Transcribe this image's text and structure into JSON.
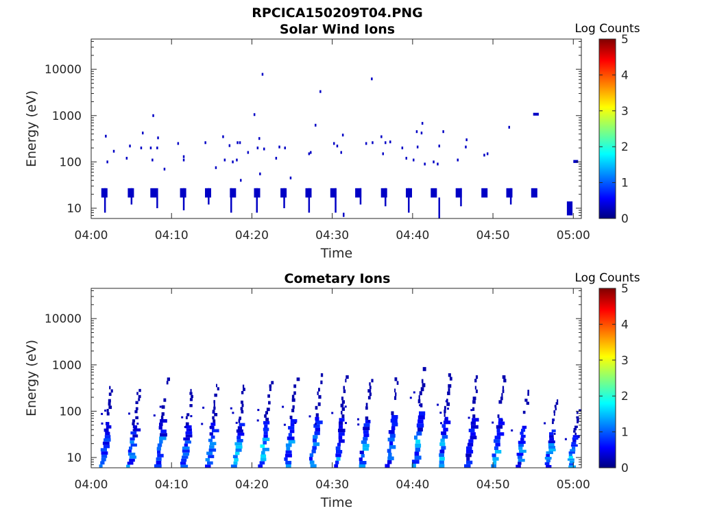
{
  "figure_title": "RPCICA150209T04.PNG",
  "chart_data": [
    {
      "type": "heatmap",
      "title": "Solar Wind Ions",
      "xlabel": "Time",
      "ylabel": "Energy (eV)",
      "x_ticks": [
        "04:00",
        "04:10",
        "04:20",
        "04:30",
        "04:40",
        "04:50",
        "05:00"
      ],
      "xlim_minutes": [
        0,
        61
      ],
      "y_scale": "log",
      "ylim": [
        6,
        45000
      ],
      "y_ticks": [
        10,
        100,
        1000,
        10000
      ],
      "y_tick_labels": [
        "10",
        "100",
        "1000",
        "10000"
      ],
      "colorbar": {
        "title": "Log Counts",
        "range": [
          0,
          5
        ],
        "ticks": [
          "0",
          "1",
          "2",
          "3",
          "4",
          "5"
        ]
      },
      "colormap": [
        "#00007f",
        "#0000ff",
        "#00ffff",
        "#ffff00",
        "#ff0000",
        "#7f0000"
      ],
      "bands": [
        {
          "times_min": [
            1.6,
            4.9,
            7.7,
            11.4,
            14.5,
            17.6,
            20.6,
            23.9,
            27.0,
            30.1,
            33.2,
            36.4,
            39.5,
            42.6,
            45.7,
            48.9,
            52.0,
            55.1
          ],
          "e_low": 17,
          "e_high": 27,
          "level": 0.3
        }
      ],
      "streaks": [
        {
          "t": 1.7,
          "e_low": 8,
          "e_high": 27
        },
        {
          "t": 5.0,
          "e_low": 12,
          "e_high": 27
        },
        {
          "t": 8.2,
          "e_low": 10,
          "e_high": 27
        },
        {
          "t": 11.5,
          "e_low": 9,
          "e_high": 27
        },
        {
          "t": 14.6,
          "e_low": 12,
          "e_high": 27
        },
        {
          "t": 17.4,
          "e_low": 8,
          "e_high": 27
        },
        {
          "t": 20.6,
          "e_low": 8,
          "e_high": 27
        },
        {
          "t": 24.0,
          "e_low": 10,
          "e_high": 27
        },
        {
          "t": 27.1,
          "e_low": 8,
          "e_high": 27
        },
        {
          "t": 30.4,
          "e_low": 8,
          "e_high": 27
        },
        {
          "t": 31.4,
          "e_low": 6.5,
          "e_high": 8
        },
        {
          "t": 33.5,
          "e_low": 12,
          "e_high": 27
        },
        {
          "t": 36.6,
          "e_low": 11,
          "e_high": 27
        },
        {
          "t": 39.5,
          "e_low": 8,
          "e_high": 27
        },
        {
          "t": 43.3,
          "e_low": 6,
          "e_high": 17
        },
        {
          "t": 46.0,
          "e_low": 11,
          "e_high": 27
        },
        {
          "t": 52.2,
          "e_low": 12,
          "e_high": 27
        }
      ],
      "blocks": [
        {
          "t0": 55.0,
          "t1": 55.7,
          "e_low": 1000,
          "e_high": 1150,
          "level": 0.3
        },
        {
          "t0": 59.2,
          "t1": 59.9,
          "e_low": 7,
          "e_high": 14,
          "level": 0.3
        },
        {
          "t0": 60.0,
          "t1": 60.6,
          "e_low": 95,
          "e_high": 110,
          "level": 0.3
        }
      ],
      "scatter": [
        {
          "t": 1.8,
          "e": 360
        },
        {
          "t": 2.0,
          "e": 100
        },
        {
          "t": 2.8,
          "e": 170
        },
        {
          "t": 4.4,
          "e": 120
        },
        {
          "t": 4.8,
          "e": 220
        },
        {
          "t": 6.2,
          "e": 200
        },
        {
          "t": 6.4,
          "e": 420
        },
        {
          "t": 7.4,
          "e": 200
        },
        {
          "t": 7.6,
          "e": 110
        },
        {
          "t": 7.7,
          "e": 1000
        },
        {
          "t": 8.2,
          "e": 200
        },
        {
          "t": 8.3,
          "e": 330
        },
        {
          "t": 9.1,
          "e": 70
        },
        {
          "t": 10.8,
          "e": 250
        },
        {
          "t": 11.5,
          "e": 130
        },
        {
          "t": 11.5,
          "e": 110
        },
        {
          "t": 14.2,
          "e": 260
        },
        {
          "t": 15.5,
          "e": 75
        },
        {
          "t": 16.4,
          "e": 350
        },
        {
          "t": 16.6,
          "e": 110
        },
        {
          "t": 17.2,
          "e": 225
        },
        {
          "t": 17.6,
          "e": 100
        },
        {
          "t": 18.1,
          "e": 110
        },
        {
          "t": 18.2,
          "e": 260
        },
        {
          "t": 18.5,
          "e": 260
        },
        {
          "t": 18.6,
          "e": 40
        },
        {
          "t": 19.5,
          "e": 160
        },
        {
          "t": 20.3,
          "e": 1050
        },
        {
          "t": 20.7,
          "e": 200
        },
        {
          "t": 20.9,
          "e": 320
        },
        {
          "t": 21.0,
          "e": 55
        },
        {
          "t": 21.3,
          "e": 7800
        },
        {
          "t": 21.5,
          "e": 190
        },
        {
          "t": 23.0,
          "e": 120
        },
        {
          "t": 23.4,
          "e": 210
        },
        {
          "t": 24.1,
          "e": 200
        },
        {
          "t": 24.8,
          "e": 45
        },
        {
          "t": 27.1,
          "e": 150
        },
        {
          "t": 27.3,
          "e": 160
        },
        {
          "t": 27.9,
          "e": 620
        },
        {
          "t": 28.5,
          "e": 3300
        },
        {
          "t": 30.2,
          "e": 250
        },
        {
          "t": 30.6,
          "e": 220
        },
        {
          "t": 31.1,
          "e": 160
        },
        {
          "t": 31.3,
          "e": 380
        },
        {
          "t": 34.2,
          "e": 250
        },
        {
          "t": 34.9,
          "e": 6200
        },
        {
          "t": 35.0,
          "e": 260
        },
        {
          "t": 36.1,
          "e": 350
        },
        {
          "t": 36.3,
          "e": 150
        },
        {
          "t": 36.6,
          "e": 260
        },
        {
          "t": 37.2,
          "e": 270
        },
        {
          "t": 38.7,
          "e": 200
        },
        {
          "t": 39.2,
          "e": 120
        },
        {
          "t": 40.1,
          "e": 110
        },
        {
          "t": 40.5,
          "e": 450
        },
        {
          "t": 40.6,
          "e": 210
        },
        {
          "t": 41.1,
          "e": 420
        },
        {
          "t": 41.2,
          "e": 680
        },
        {
          "t": 41.5,
          "e": 90
        },
        {
          "t": 42.6,
          "e": 100
        },
        {
          "t": 43.1,
          "e": 90
        },
        {
          "t": 43.3,
          "e": 220
        },
        {
          "t": 43.8,
          "e": 450
        },
        {
          "t": 45.6,
          "e": 110
        },
        {
          "t": 46.6,
          "e": 210
        },
        {
          "t": 46.7,
          "e": 300
        },
        {
          "t": 48.9,
          "e": 140
        },
        {
          "t": 49.3,
          "e": 150
        },
        {
          "t": 52.0,
          "e": 560
        }
      ],
      "scatter_level": 0.3
    },
    {
      "type": "heatmap",
      "title": "Cometary Ions",
      "xlabel": "Time",
      "ylabel": "Energy (eV)",
      "x_ticks": [
        "04:00",
        "04:10",
        "04:20",
        "04:30",
        "04:40",
        "04:50",
        "05:00"
      ],
      "xlim_minutes": [
        0,
        61
      ],
      "y_scale": "log",
      "ylim": [
        6,
        45000
      ],
      "y_ticks": [
        10,
        100,
        1000,
        10000
      ],
      "y_tick_labels": [
        "10",
        "100",
        "1000",
        "10000"
      ],
      "colorbar": {
        "title": "Log Counts",
        "range": [
          0,
          5
        ],
        "ticks": [
          "0",
          "1",
          "2",
          "3",
          "4",
          "5"
        ]
      },
      "colormap": [
        "#00007f",
        "#0000ff",
        "#00ffff",
        "#ffff00",
        "#ff0000",
        "#7f0000"
      ],
      "sweeps": [
        {
          "t": 1.4,
          "peak_e": 350,
          "level": 0.8
        },
        {
          "t": 4.8,
          "peak_e": 260,
          "level": 0.9
        },
        {
          "t": 8.3,
          "peak_e": 450,
          "level": 0.9
        },
        {
          "t": 11.4,
          "peak_e": 260,
          "level": 0.8
        },
        {
          "t": 14.6,
          "peak_e": 330,
          "level": 0.9
        },
        {
          "t": 17.9,
          "peak_e": 320,
          "level": 1.2
        },
        {
          "t": 21.2,
          "peak_e": 380,
          "level": 1.2
        },
        {
          "t": 24.4,
          "peak_e": 450,
          "level": 1.0
        },
        {
          "t": 27.5,
          "peak_e": 550,
          "level": 1.1
        },
        {
          "t": 30.6,
          "peak_e": 500,
          "level": 1.0
        },
        {
          "t": 33.7,
          "peak_e": 420,
          "level": 1.0
        },
        {
          "t": 37.0,
          "peak_e": 650,
          "level": 1.0
        },
        {
          "t": 40.3,
          "peak_e": 900,
          "level": 1.2
        },
        {
          "t": 43.5,
          "peak_e": 550,
          "level": 1.1
        },
        {
          "t": 46.9,
          "peak_e": 500,
          "level": 0.6
        },
        {
          "t": 50.2,
          "peak_e": 500,
          "level": 1.0
        },
        {
          "t": 53.2,
          "peak_e": 250,
          "level": 0.9
        },
        {
          "t": 56.8,
          "peak_e": 180,
          "level": 1.0
        },
        {
          "t": 59.6,
          "peak_e": 110,
          "level": 1.2
        }
      ]
    }
  ]
}
